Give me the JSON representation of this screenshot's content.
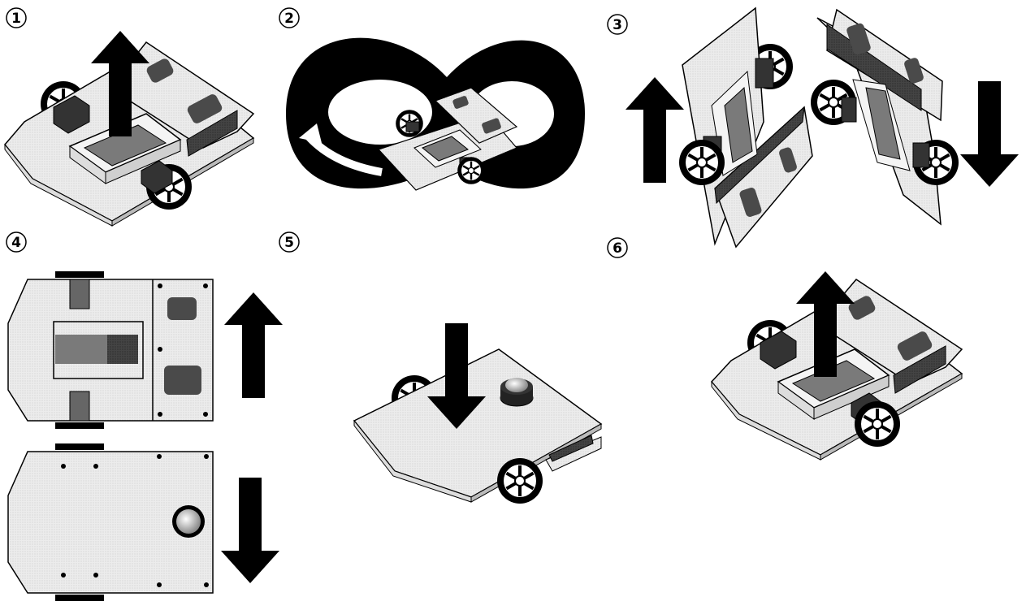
{
  "steps": [
    {
      "number": "1"
    },
    {
      "number": "2"
    },
    {
      "number": "3"
    },
    {
      "number": "4"
    },
    {
      "number": "5"
    },
    {
      "number": "6"
    }
  ],
  "colors": {
    "ink": "#000000",
    "board": "#eeeeee",
    "board_dark": "#d0d0d0",
    "battery": "#7a7a7a",
    "chip": "#4a4a4a",
    "track": "#000000",
    "paper": "#ffffff"
  },
  "icons": [
    "up-arrow-icon",
    "down-arrow-icon",
    "curved-arrow-icon",
    "wheel-icon",
    "motor-icon",
    "caster-ball-icon"
  ]
}
